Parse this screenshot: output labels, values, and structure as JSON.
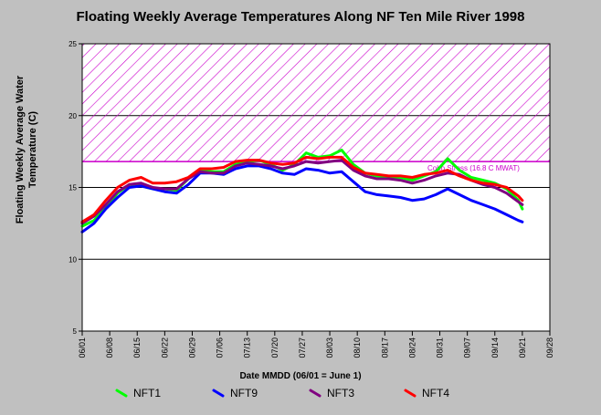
{
  "chart_data": {
    "type": "line",
    "title": "Floating Weekly Average Temperatures Along NF Ten Mile River 1998",
    "xlabel": "Date MMDD (06/01 = June 1)",
    "ylabel": "Floating Weekly Average Water Temperature (C)",
    "ylim": [
      5,
      25
    ],
    "yticks": [
      "5",
      "10",
      "15",
      "20",
      "25"
    ],
    "xticks": [
      "06/01",
      "06/08",
      "06/15",
      "06/22",
      "06/29",
      "07/06",
      "07/13",
      "07/20",
      "07/27",
      "08/03",
      "08/10",
      "08/17",
      "08/24",
      "08/31",
      "09/07",
      "09/14",
      "09/21",
      "09/28"
    ],
    "grid": "horizontal",
    "legend_position": "bottom",
    "threshold": {
      "label": "Coho Stress (16.8 C MWAT)",
      "value": 16.8,
      "band_top": 25,
      "color": "#cc00cc"
    },
    "series": [
      {
        "name": "NFT1",
        "color": "#00ff00",
        "x": [
          0,
          3,
          6,
          9,
          12,
          15,
          18,
          21,
          24,
          27,
          30,
          33,
          36,
          39,
          42,
          45,
          48,
          51,
          54,
          57,
          60,
          63,
          66,
          69,
          72,
          75,
          78,
          81,
          84,
          87,
          90,
          93,
          96,
          99,
          102,
          105,
          108,
          111,
          112
        ],
        "y": [
          12.3,
          12.7,
          13.6,
          14.6,
          15.2,
          15.1,
          14.9,
          14.9,
          14.8,
          15.6,
          16.2,
          16.1,
          16.1,
          16.6,
          16.8,
          16.9,
          16.6,
          16.2,
          16.6,
          17.4,
          17.1,
          17.2,
          17.6,
          16.6,
          16.0,
          15.8,
          15.7,
          15.7,
          15.5,
          15.8,
          16.1,
          17.0,
          16.2,
          15.7,
          15.5,
          15.3,
          14.9,
          14.1,
          13.5
        ]
      },
      {
        "name": "NFT9",
        "color": "#0000ff",
        "x": [
          0,
          3,
          6,
          9,
          12,
          15,
          18,
          21,
          24,
          27,
          30,
          33,
          36,
          39,
          42,
          45,
          48,
          51,
          54,
          57,
          60,
          63,
          66,
          69,
          72,
          75,
          78,
          81,
          84,
          87,
          90,
          93,
          96,
          99,
          102,
          105,
          108,
          111,
          112
        ],
        "y": [
          11.9,
          12.5,
          13.5,
          14.3,
          15.0,
          15.1,
          14.9,
          14.7,
          14.6,
          15.2,
          16.0,
          16.0,
          15.9,
          16.3,
          16.5,
          16.5,
          16.3,
          16.0,
          15.9,
          16.3,
          16.2,
          16.0,
          16.1,
          15.4,
          14.7,
          14.5,
          14.4,
          14.3,
          14.1,
          14.2,
          14.5,
          14.9,
          14.5,
          14.1,
          13.8,
          13.5,
          13.1,
          12.7,
          12.6
        ]
      },
      {
        "name": "NFT3",
        "color": "#800080",
        "x": [
          0,
          3,
          6,
          9,
          12,
          15,
          18,
          21,
          24,
          27,
          30,
          33,
          36,
          39,
          42,
          45,
          48,
          51,
          54,
          57,
          60,
          63,
          66,
          69,
          72,
          75,
          78,
          81,
          84,
          87,
          90,
          93,
          96,
          99,
          102,
          105,
          108,
          111,
          112
        ],
        "y": [
          12.5,
          13.0,
          13.8,
          14.7,
          15.2,
          15.3,
          15.0,
          14.9,
          14.9,
          15.6,
          16.1,
          16.0,
          16.0,
          16.5,
          16.7,
          16.6,
          16.5,
          16.3,
          16.5,
          16.8,
          16.7,
          16.8,
          16.9,
          16.2,
          15.8,
          15.6,
          15.6,
          15.5,
          15.3,
          15.5,
          15.8,
          16.0,
          15.9,
          15.5,
          15.2,
          15.0,
          14.6,
          14.0,
          13.8
        ]
      },
      {
        "name": "NFT4",
        "color": "#ff0000",
        "x": [
          0,
          3,
          6,
          9,
          12,
          15,
          18,
          21,
          24,
          27,
          30,
          33,
          36,
          39,
          42,
          45,
          48,
          51,
          54,
          57,
          60,
          63,
          66,
          69,
          72,
          75,
          78,
          81,
          84,
          87,
          90,
          93,
          96,
          99,
          102,
          105,
          108,
          111,
          112
        ],
        "y": [
          12.6,
          13.1,
          14.1,
          15.0,
          15.5,
          15.7,
          15.3,
          15.3,
          15.4,
          15.7,
          16.3,
          16.3,
          16.4,
          16.8,
          16.9,
          16.9,
          16.7,
          16.6,
          16.7,
          17.1,
          17.0,
          17.1,
          17.1,
          16.4,
          16.0,
          15.9,
          15.8,
          15.8,
          15.7,
          15.9,
          16.0,
          16.2,
          15.8,
          15.5,
          15.3,
          15.2,
          15.0,
          14.4,
          14.1
        ]
      }
    ]
  }
}
